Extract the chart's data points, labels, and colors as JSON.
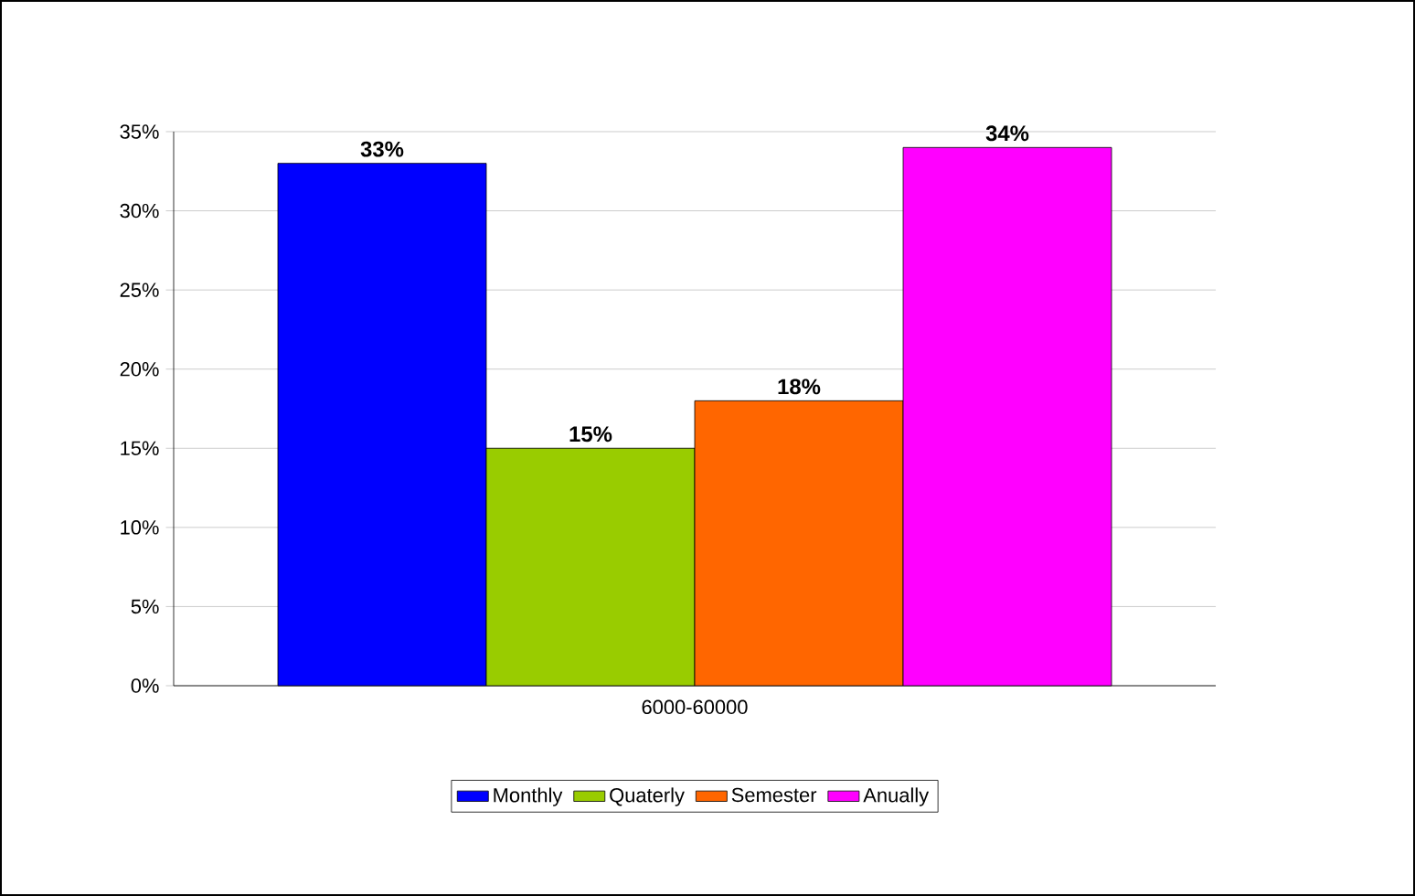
{
  "chart_data": {
    "type": "bar",
    "categories": [
      "6000-60000"
    ],
    "series": [
      {
        "name": "Monthly",
        "color": "#0000ff",
        "values": [
          33
        ],
        "value_labels": [
          "33%"
        ]
      },
      {
        "name": "Quaterly",
        "color": "#99cc00",
        "values": [
          15
        ],
        "value_labels": [
          "15%"
        ]
      },
      {
        "name": "Semester",
        "color": "#ff6600",
        "values": [
          18
        ],
        "value_labels": [
          "18%"
        ]
      },
      {
        "name": "Anually",
        "color": "#ff00ff",
        "values": [
          34
        ],
        "value_labels": [
          "34%"
        ]
      }
    ],
    "ylim": [
      0,
      35
    ],
    "yticks": [
      {
        "value": 0,
        "label": "0%"
      },
      {
        "value": 5,
        "label": "5%"
      },
      {
        "value": 10,
        "label": "10%"
      },
      {
        "value": 15,
        "label": "15%"
      },
      {
        "value": 20,
        "label": "20%"
      },
      {
        "value": 25,
        "label": "25%"
      },
      {
        "value": 30,
        "label": "30%"
      },
      {
        "value": 35,
        "label": "35%"
      }
    ],
    "grid": "y",
    "legend": "bottom"
  }
}
